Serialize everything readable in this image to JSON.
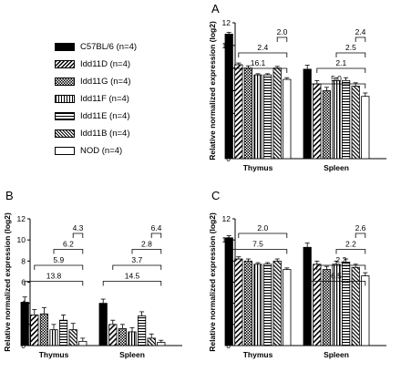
{
  "panel_labels": [
    "A",
    "B",
    "C"
  ],
  "legend": [
    {
      "label": "C57BL/6 (n=4)",
      "pattern": "black"
    },
    {
      "label": "Idd11D (n=4)",
      "pattern": "diag"
    },
    {
      "label": "Idd11G (n=4)",
      "pattern": "check"
    },
    {
      "label": "Idd11F (n=4)",
      "pattern": "vert"
    },
    {
      "label": "Idd11E (n=4)",
      "pattern": "horiz"
    },
    {
      "label": "Idd11B (n=4)",
      "pattern": "diag-dense"
    },
    {
      "label": "NOD (n=4)",
      "pattern": "white"
    }
  ],
  "chart_data": [
    {
      "panel": "A",
      "type": "bar",
      "ylabel": "Relative normalized expression (log2)",
      "ylim": [
        0,
        12
      ],
      "yticks": [
        0,
        2,
        4,
        6,
        8,
        10,
        12
      ],
      "categories": [
        "Thymus",
        "Spleen"
      ],
      "series": [
        {
          "name": "C57BL/6 (n=4)",
          "values": [
            11.0,
            7.9
          ],
          "errors": [
            0.15,
            0.35
          ]
        },
        {
          "name": "Idd11D (n=4)",
          "values": [
            8.3,
            6.6
          ],
          "errors": [
            0.15,
            0.3
          ]
        },
        {
          "name": "Idd11G (n=4)",
          "values": [
            8.0,
            6.0
          ],
          "errors": [
            0.2,
            0.3
          ]
        },
        {
          "name": "Idd11F (n=4)",
          "values": [
            7.4,
            6.9
          ],
          "errors": [
            0.1,
            0.25
          ]
        },
        {
          "name": "Idd11E (n=4)",
          "values": [
            7.4,
            6.9
          ],
          "errors": [
            0.1,
            0.25
          ]
        },
        {
          "name": "Idd11B (n=4)",
          "values": [
            8.0,
            6.4
          ],
          "errors": [
            0.15,
            0.3
          ]
        },
        {
          "name": "NOD (n=4)",
          "values": [
            7.0,
            5.5
          ],
          "errors": [
            0.15,
            0.3
          ]
        }
      ],
      "annotations": [
        {
          "cat": 0,
          "from": 0,
          "to": 6,
          "label": "16.1"
        },
        {
          "cat": 0,
          "from": 1,
          "to": 6,
          "label": "2.4"
        },
        {
          "cat": 0,
          "from": 5,
          "to": 6,
          "label": "2.0"
        },
        {
          "cat": 1,
          "from": 0,
          "to": 6,
          "label": "5.0"
        },
        {
          "cat": 1,
          "from": 1,
          "to": 6,
          "label": "2.1"
        },
        {
          "cat": 1,
          "from": 3,
          "to": 6,
          "label": "2.5"
        },
        {
          "cat": 1,
          "from": 5,
          "to": 6,
          "label": "2.4"
        }
      ]
    },
    {
      "panel": "B",
      "type": "bar",
      "ylabel": "Relative normalized expression (log2)",
      "ylim": [
        0,
        12
      ],
      "yticks": [
        0,
        2,
        4,
        6,
        8,
        10,
        12
      ],
      "categories": [
        "Thymus",
        "Spleen"
      ],
      "series": [
        {
          "name": "C57BL/6 (n=4)",
          "values": [
            4.1,
            4.0
          ],
          "errors": [
            0.5,
            0.4
          ]
        },
        {
          "name": "Idd11D (n=4)",
          "values": [
            2.9,
            2.0
          ],
          "errors": [
            0.5,
            0.4
          ]
        },
        {
          "name": "Idd11G (n=4)",
          "values": [
            3.0,
            1.6
          ],
          "errors": [
            0.6,
            0.4
          ]
        },
        {
          "name": "Idd11F (n=4)",
          "values": [
            1.5,
            1.3
          ],
          "errors": [
            0.5,
            0.4
          ]
        },
        {
          "name": "Idd11E (n=4)",
          "values": [
            2.4,
            2.8
          ],
          "errors": [
            0.5,
            0.4
          ]
        },
        {
          "name": "Idd11B (n=4)",
          "values": [
            1.5,
            0.7
          ],
          "errors": [
            0.6,
            0.4
          ]
        },
        {
          "name": "NOD (n=4)",
          "values": [
            0.4,
            0.3
          ],
          "errors": [
            0.3,
            0.2
          ]
        }
      ],
      "annotations": [
        {
          "cat": 0,
          "from": 0,
          "to": 6,
          "label": "13.8"
        },
        {
          "cat": 0,
          "from": 1,
          "to": 6,
          "label": "5.9"
        },
        {
          "cat": 0,
          "from": 3,
          "to": 6,
          "label": "6.2"
        },
        {
          "cat": 0,
          "from": 5,
          "to": 6,
          "label": "4.3"
        },
        {
          "cat": 1,
          "from": 0,
          "to": 6,
          "label": "14.5"
        },
        {
          "cat": 1,
          "from": 1,
          "to": 6,
          "label": "3.7"
        },
        {
          "cat": 1,
          "from": 3,
          "to": 6,
          "label": "2.8"
        },
        {
          "cat": 1,
          "from": 5,
          "to": 6,
          "label": "6.4"
        }
      ]
    },
    {
      "panel": "C",
      "type": "bar",
      "ylabel": "Relative normalized expression (log2)",
      "ylim": [
        0,
        12
      ],
      "yticks": [
        0,
        2,
        4,
        6,
        8,
        10,
        12
      ],
      "categories": [
        "Thymus",
        "Spleen"
      ],
      "series": [
        {
          "name": "C57BL/6 (n=4)",
          "values": [
            10.2,
            9.3
          ],
          "errors": [
            0.2,
            0.4
          ]
        },
        {
          "name": "Idd11D (n=4)",
          "values": [
            8.2,
            7.7
          ],
          "errors": [
            0.2,
            0.3
          ]
        },
        {
          "name": "Idd11G (n=4)",
          "values": [
            8.0,
            7.2
          ],
          "errors": [
            0.2,
            0.3
          ]
        },
        {
          "name": "Idd11F (n=4)",
          "values": [
            7.7,
            7.7
          ],
          "errors": [
            0.15,
            0.3
          ]
        },
        {
          "name": "Idd11E (n=4)",
          "values": [
            7.7,
            7.9
          ],
          "errors": [
            0.15,
            0.3
          ]
        },
        {
          "name": "Idd11B (n=4)",
          "values": [
            8.0,
            7.4
          ],
          "errors": [
            0.2,
            0.3
          ]
        },
        {
          "name": "NOD (n=4)",
          "values": [
            7.2,
            6.6
          ],
          "errors": [
            0.15,
            0.3
          ]
        }
      ],
      "annotations": [
        {
          "cat": 0,
          "from": 0,
          "to": 6,
          "label": "7.5"
        },
        {
          "cat": 0,
          "from": 1,
          "to": 6,
          "label": "2.0"
        },
        {
          "cat": 1,
          "from": 0,
          "to": 6,
          "label": "6.5"
        },
        {
          "cat": 1,
          "from": 1,
          "to": 6,
          "label": "2.2"
        },
        {
          "cat": 1,
          "from": 3,
          "to": 6,
          "label": "2.2"
        },
        {
          "cat": 1,
          "from": 5,
          "to": 6,
          "label": "2.6"
        }
      ]
    }
  ]
}
